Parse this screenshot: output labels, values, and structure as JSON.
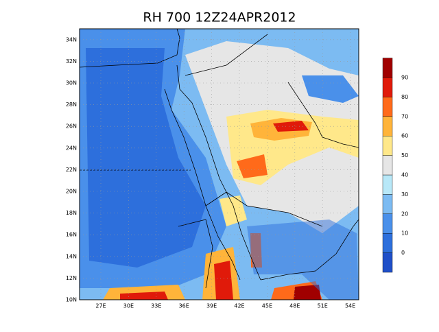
{
  "title": "RH 700 12Z24APR2012",
  "map": {
    "lat_labels": [
      "34N",
      "32N",
      "30N",
      "28N",
      "26N",
      "24N",
      "22N",
      "20N",
      "18N",
      "16N",
      "14N",
      "12N",
      "10N"
    ],
    "lon_labels": [
      "27E",
      "30E",
      "33E",
      "36E",
      "39E",
      "42E",
      "45E",
      "48E",
      "51E",
      "54E"
    ]
  },
  "colorbar": {
    "levels": [
      0,
      10,
      20,
      30,
      40,
      50,
      60,
      70,
      80,
      90
    ],
    "colors": [
      "#1f4fc8",
      "#2d6fdc",
      "#4a90ea",
      "#7cbbf2",
      "#b8e8f8",
      "#e6e6e6",
      "#ffe88a",
      "#ffb43a",
      "#ff6a1a",
      "#e01a0a",
      "#a00000"
    ]
  }
}
